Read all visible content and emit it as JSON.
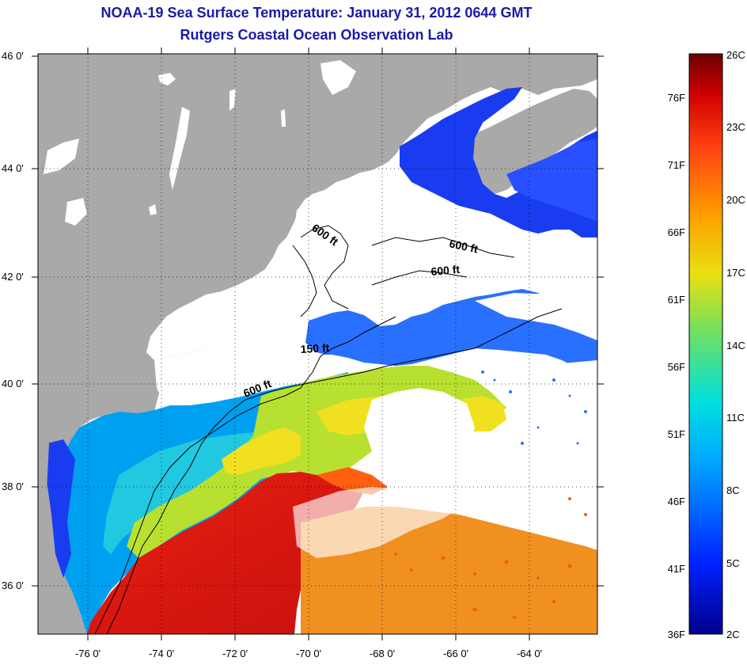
{
  "header": {
    "title": "NOAA-19 Sea Surface Temperature:  January 31, 2012 0644 GMT",
    "subtitle": "Rutgers Coastal Ocean Observation Lab"
  },
  "axes": {
    "lat_labels": [
      "46 0'",
      "44 0'",
      "42 0'",
      "40 0'",
      "38 0'",
      "36 0'"
    ],
    "lon_labels": [
      "-76 0'",
      "-74 0'",
      "-72 0'",
      "-70 0'",
      "-68 0'",
      "-66 0'",
      "-64 0'"
    ]
  },
  "contours": [
    {
      "label": "600 ft"
    },
    {
      "label": "600 ft"
    },
    {
      "label": "600 ft"
    },
    {
      "label": "150 ft"
    },
    {
      "label": "600 ft"
    }
  ],
  "colorbar": {
    "fahrenheit_labels": [
      "76F",
      "71F",
      "66F",
      "61F",
      "56F",
      "51F",
      "46F",
      "41F",
      "36F"
    ],
    "celsius_labels": [
      "26C",
      "23C",
      "20C",
      "17C",
      "14C",
      "11C",
      "8C",
      "5C",
      "2C"
    ]
  },
  "colors": {
    "land": "#a9a9a9",
    "cloud": "#ffffff",
    "title": "#1a1aa6"
  }
}
